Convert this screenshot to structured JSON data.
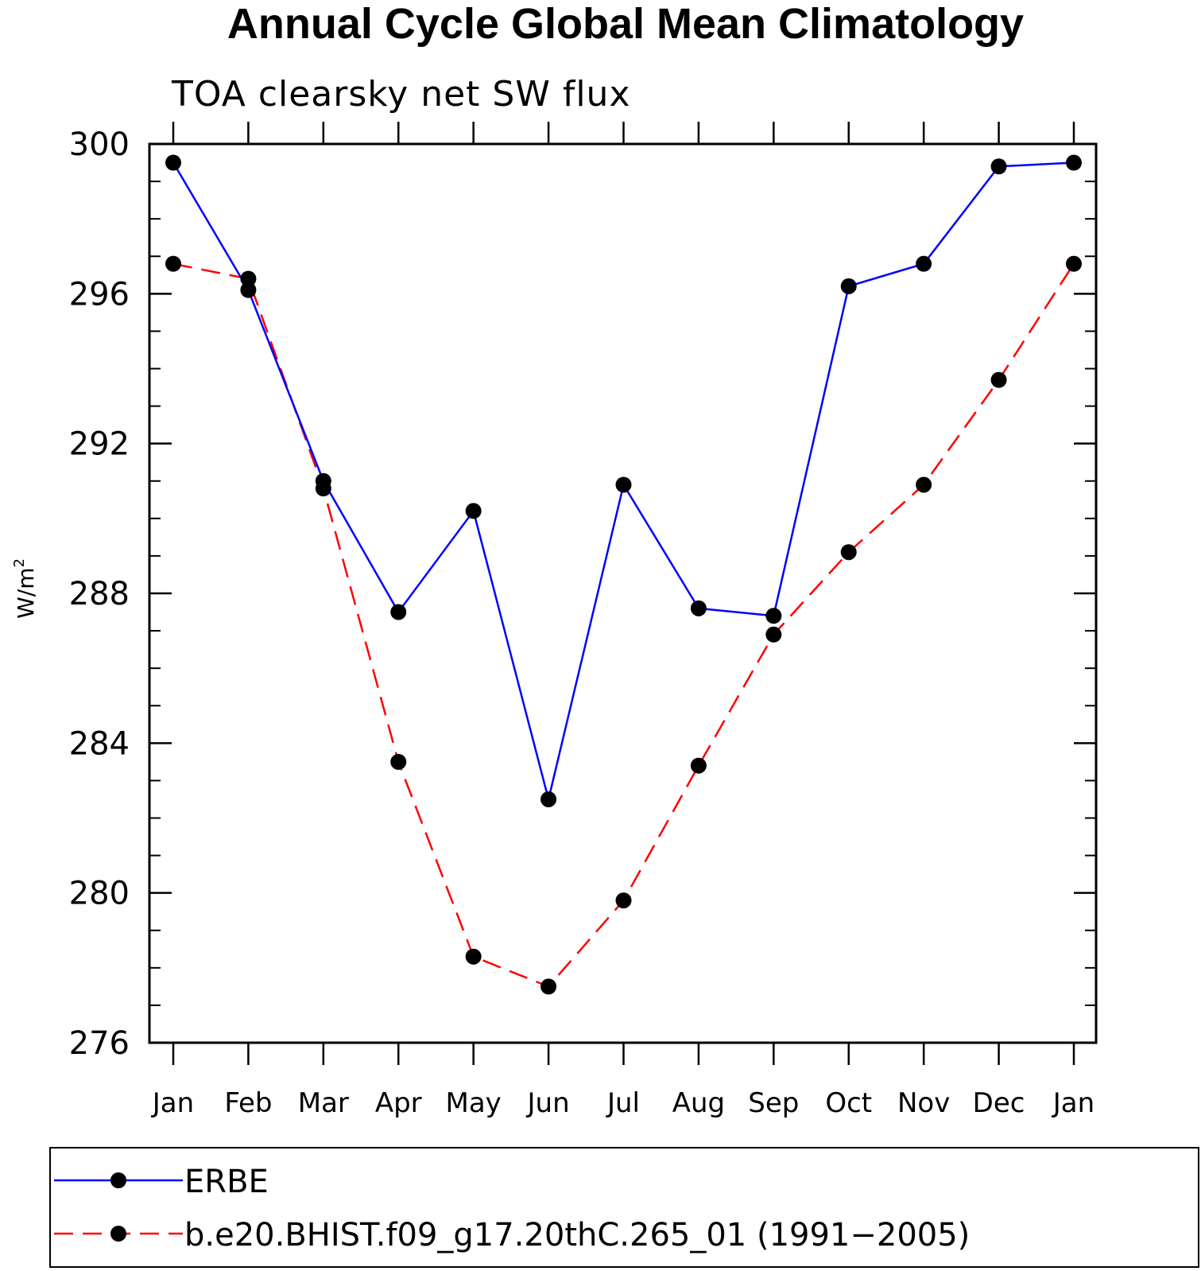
{
  "chart_data": {
    "type": "line",
    "title": "Annual Cycle Global Mean Climatology",
    "subtitle": "TOA clearsky net SW flux",
    "ylabel": "W/m",
    "ylabel_sup": "2",
    "xlabel": "",
    "categories": [
      "Jan",
      "Feb",
      "Mar",
      "Apr",
      "May",
      "Jun",
      "Jul",
      "Aug",
      "Sep",
      "Oct",
      "Nov",
      "Dec",
      "Jan"
    ],
    "ylim": [
      276,
      300
    ],
    "yticks": [
      276,
      280,
      284,
      288,
      292,
      296,
      300
    ],
    "grid": false,
    "legend_position": "bottom",
    "series": [
      {
        "name": "ERBE",
        "color": "#0000ff",
        "dash": "solid",
        "values": [
          299.5,
          296.1,
          291.0,
          287.5,
          290.2,
          282.5,
          290.9,
          287.6,
          287.4,
          296.2,
          296.8,
          299.4,
          299.5
        ]
      },
      {
        "name": "b.e20.BHIST.f09_g17.20thC.265_01 (1991−2005)",
        "color": "#ff0000",
        "dash": "dashed",
        "values": [
          296.8,
          296.4,
          290.8,
          283.5,
          278.3,
          277.5,
          279.8,
          283.4,
          286.9,
          289.1,
          290.9,
          293.7,
          296.8
        ]
      }
    ]
  }
}
